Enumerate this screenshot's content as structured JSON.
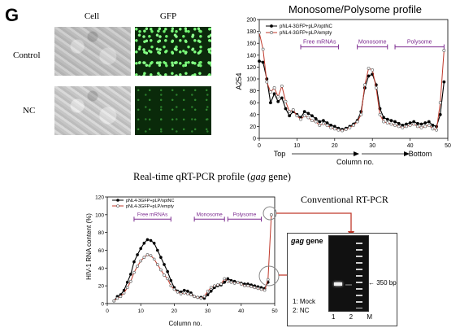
{
  "panel_letter": "G",
  "microscopy": {
    "columns": [
      "Cell",
      "GFP"
    ],
    "rows": [
      "Control",
      "NC"
    ]
  },
  "chart_data": [
    {
      "type": "line",
      "title": "Monosome/Polysome profile",
      "ylabel": "A254",
      "xlabel": "Column no.",
      "xlim": [
        0,
        50
      ],
      "ylim": [
        0,
        200
      ],
      "xticks": [
        0,
        10,
        20,
        30,
        40,
        50
      ],
      "yticks": [
        0,
        20,
        40,
        60,
        80,
        100,
        120,
        140,
        160,
        180,
        200
      ],
      "direction_labels": {
        "left": "Top",
        "right": "Bottom"
      },
      "regions": [
        {
          "label": "Free mRNAs",
          "x": [
            11,
            21
          ]
        },
        {
          "label": "Monosome",
          "x": [
            26,
            34
          ]
        },
        {
          "label": "Polysome",
          "x": [
            36,
            49
          ]
        }
      ],
      "legend_position": "top-left",
      "series": [
        {
          "name": "pNL4-3GFP+pLP/optNC",
          "color": "#000000",
          "marker": "filled-circle",
          "x": [
            0,
            1,
            2,
            3,
            4,
            5,
            6,
            7,
            8,
            9,
            10,
            11,
            12,
            13,
            14,
            15,
            16,
            17,
            18,
            19,
            20,
            21,
            22,
            23,
            24,
            25,
            26,
            27,
            28,
            29,
            30,
            31,
            32,
            33,
            34,
            35,
            36,
            37,
            38,
            39,
            40,
            41,
            42,
            43,
            44,
            45,
            46,
            47,
            48,
            49
          ],
          "y": [
            130,
            128,
            100,
            60,
            75,
            62,
            68,
            50,
            38,
            45,
            40,
            35,
            45,
            42,
            38,
            33,
            28,
            30,
            26,
            22,
            20,
            17,
            15,
            17,
            20,
            24,
            30,
            45,
            85,
            105,
            108,
            90,
            50,
            35,
            32,
            30,
            28,
            25,
            22,
            24,
            26,
            28,
            25,
            24,
            26,
            28,
            22,
            20,
            40,
            95
          ]
        },
        {
          "name": "pNL4-3GFP+pLP/empty",
          "color": "#c0392b",
          "marker": "open-circle",
          "x": [
            0,
            1,
            2,
            3,
            4,
            5,
            6,
            7,
            8,
            9,
            10,
            11,
            12,
            13,
            14,
            15,
            16,
            17,
            18,
            19,
            20,
            21,
            22,
            23,
            24,
            25,
            26,
            27,
            28,
            29,
            30,
            31,
            32,
            33,
            34,
            35,
            36,
            37,
            38,
            39,
            40,
            41,
            42,
            43,
            44,
            45,
            46,
            47,
            48,
            49
          ],
          "y": [
            178,
            150,
            95,
            78,
            85,
            70,
            88,
            62,
            45,
            48,
            38,
            32,
            38,
            35,
            30,
            28,
            22,
            25,
            22,
            18,
            16,
            14,
            13,
            15,
            18,
            22,
            28,
            40,
            90,
            118,
            115,
            85,
            40,
            28,
            26,
            24,
            22,
            20,
            18,
            20,
            22,
            24,
            20,
            18,
            20,
            22,
            16,
            14,
            60,
            148
          ]
        }
      ]
    },
    {
      "type": "line",
      "title": "Real-time qRT-PCR profile (gag gene)",
      "title_parts": {
        "prefix": "Real-time qRT-PCR profile (",
        "italic": "gag",
        "suffix": " gene)"
      },
      "ylabel": "HIV-1 RNA content (%)",
      "xlabel": "Column no.",
      "xlim": [
        0,
        50
      ],
      "ylim": [
        0,
        120
      ],
      "xticks": [
        0,
        10,
        20,
        30,
        40,
        50
      ],
      "yticks": [
        0,
        20,
        40,
        60,
        80,
        100,
        120
      ],
      "regions": [
        {
          "label": "Free mRNAs",
          "x": [
            8,
            19
          ]
        },
        {
          "label": "Monosome",
          "x": [
            26,
            35
          ]
        },
        {
          "label": "Polysome",
          "x": [
            36,
            46
          ]
        }
      ],
      "legend_position": "top-left",
      "series": [
        {
          "name": "pNL4-3GFP+pLP/optNC",
          "color": "#000000",
          "marker": "filled-circle",
          "x": [
            2,
            3,
            4,
            5,
            6,
            7,
            8,
            9,
            10,
            11,
            12,
            13,
            14,
            15,
            16,
            17,
            18,
            19,
            20,
            21,
            22,
            23,
            24,
            25,
            26,
            27,
            28,
            29,
            30,
            31,
            32,
            33,
            34,
            35,
            36,
            37,
            38,
            39,
            40,
            41,
            42,
            43,
            44,
            45,
            46,
            47,
            48
          ],
          "y": [
            3,
            8,
            10,
            15,
            24,
            33,
            47,
            55,
            62,
            68,
            72,
            71,
            68,
            60,
            52,
            44,
            36,
            26,
            18,
            14,
            13,
            15,
            14,
            12,
            8,
            7,
            7,
            6,
            10,
            14,
            18,
            20,
            21,
            24,
            28,
            26,
            25,
            24,
            23,
            22,
            22,
            21,
            20,
            19,
            18,
            17,
            24
          ]
        },
        {
          "name": "pNL4-3GFP+pLP/empty",
          "color": "#c0392b",
          "marker": "open-circle",
          "x": [
            2,
            3,
            4,
            5,
            6,
            7,
            8,
            9,
            10,
            11,
            12,
            13,
            14,
            15,
            16,
            17,
            18,
            19,
            20,
            21,
            22,
            23,
            24,
            25,
            26,
            27,
            28,
            29,
            30,
            31,
            32,
            33,
            34,
            35,
            36,
            37,
            38,
            39,
            40,
            41,
            42,
            43,
            44,
            45,
            46,
            47,
            48,
            49
          ],
          "y": [
            3,
            6,
            8,
            12,
            18,
            25,
            35,
            42,
            48,
            52,
            55,
            54,
            50,
            44,
            38,
            32,
            28,
            20,
            16,
            13,
            11,
            12,
            11,
            10,
            8,
            7,
            6,
            8,
            14,
            18,
            20,
            21,
            22,
            28,
            25,
            24,
            23,
            24,
            22,
            20,
            20,
            19,
            18,
            17,
            16,
            15,
            27,
            100
          ]
        }
      ]
    }
  ],
  "gel": {
    "title": "Conventional RT-PCR",
    "gene_italic": "gag",
    "gene_suffix": " gene",
    "band_label": "350 bp",
    "legend": [
      "1: Mock",
      "2: NC"
    ],
    "lanes": [
      "1",
      "2",
      "M"
    ]
  }
}
